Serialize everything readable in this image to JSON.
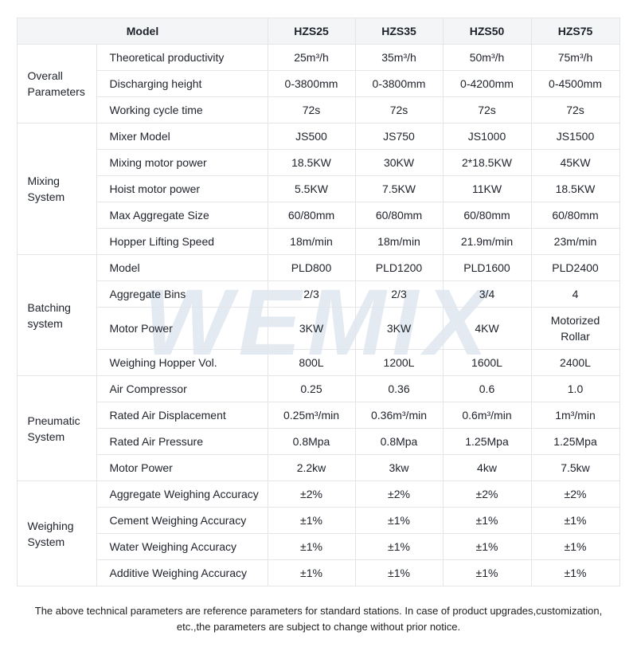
{
  "watermark": "WEMIX",
  "colors": {
    "header_bg": "#f4f5f6",
    "border": "#e3e5e9",
    "text": "#20242c",
    "watermark": "#e3eaf2"
  },
  "header": {
    "model_label": "Model",
    "columns": [
      "HZS25",
      "HZS35",
      "HZS50",
      "HZS75"
    ]
  },
  "groups": [
    {
      "label": "Overall Parameters",
      "rows": [
        {
          "param": "Theoretical productivity",
          "values": [
            "25m³/h",
            "35m³/h",
            "50m³/h",
            "75m³/h"
          ]
        },
        {
          "param": "Discharging height",
          "values": [
            "0-3800mm",
            "0-3800mm",
            "0-4200mm",
            "0-4500mm"
          ]
        },
        {
          "param": "Working cycle time",
          "values": [
            "72s",
            "72s",
            "72s",
            "72s"
          ]
        }
      ]
    },
    {
      "label": "Mixing System",
      "rows": [
        {
          "param": "Mixer Model",
          "values": [
            "JS500",
            "JS750",
            "JS1000",
            "JS1500"
          ]
        },
        {
          "param": "Mixing motor power",
          "values": [
            "18.5KW",
            "30KW",
            "2*18.5KW",
            "45KW"
          ]
        },
        {
          "param": "Hoist motor power",
          "values": [
            "5.5KW",
            "7.5KW",
            "11KW",
            "18.5KW"
          ]
        },
        {
          "param": "Max Aggregate Size",
          "values": [
            "60/80mm",
            "60/80mm",
            "60/80mm",
            "60/80mm"
          ]
        },
        {
          "param": "Hopper Lifting Speed",
          "values": [
            "18m/min",
            "18m/min",
            "21.9m/min",
            "23m/min"
          ]
        }
      ]
    },
    {
      "label": "Batching system",
      "rows": [
        {
          "param": "Model",
          "values": [
            "PLD800",
            "PLD1200",
            "PLD1600",
            "PLD2400"
          ]
        },
        {
          "param": "Aggregate Bins",
          "values": [
            "2/3",
            "2/3",
            "3/4",
            "4"
          ]
        },
        {
          "param": "Motor Power",
          "values": [
            "3KW",
            "3KW",
            "4KW",
            "Motorized Rollar"
          ]
        },
        {
          "param": "Weighing Hopper Vol.",
          "values": [
            "800L",
            "1200L",
            "1600L",
            "2400L"
          ]
        }
      ]
    },
    {
      "label": "Pneumatic System",
      "rows": [
        {
          "param": "Air Compressor",
          "values": [
            "0.25",
            "0.36",
            "0.6",
            "1.0"
          ]
        },
        {
          "param": "Rated Air Displacement",
          "values": [
            "0.25m³/min",
            "0.36m³/min",
            "0.6m³/min",
            "1m³/min"
          ]
        },
        {
          "param": "Rated Air Pressure",
          "values": [
            "0.8Mpa",
            "0.8Mpa",
            "1.25Mpa",
            "1.25Mpa"
          ]
        },
        {
          "param": "Motor Power",
          "values": [
            "2.2kw",
            "3kw",
            "4kw",
            "7.5kw"
          ]
        }
      ]
    },
    {
      "label": "Weighing System",
      "rows": [
        {
          "param": "Aggregate Weighing Accuracy",
          "values": [
            "±2%",
            "±2%",
            "±2%",
            "±2%"
          ]
        },
        {
          "param": "Cement Weighing Accuracy",
          "values": [
            "±1%",
            "±1%",
            "±1%",
            "±1%"
          ]
        },
        {
          "param": "Water Weighing Accuracy",
          "values": [
            "±1%",
            "±1%",
            "±1%",
            "±1%"
          ]
        },
        {
          "param": "Additive Weighing Accuracy",
          "values": [
            "±1%",
            "±1%",
            "±1%",
            "±1%"
          ]
        }
      ]
    }
  ],
  "footer": {
    "line1": "The above technical parameters are reference parameters for standard stations. In case of product upgrades,customization,",
    "line2": "etc.,the parameters are subject to change without prior notice."
  }
}
